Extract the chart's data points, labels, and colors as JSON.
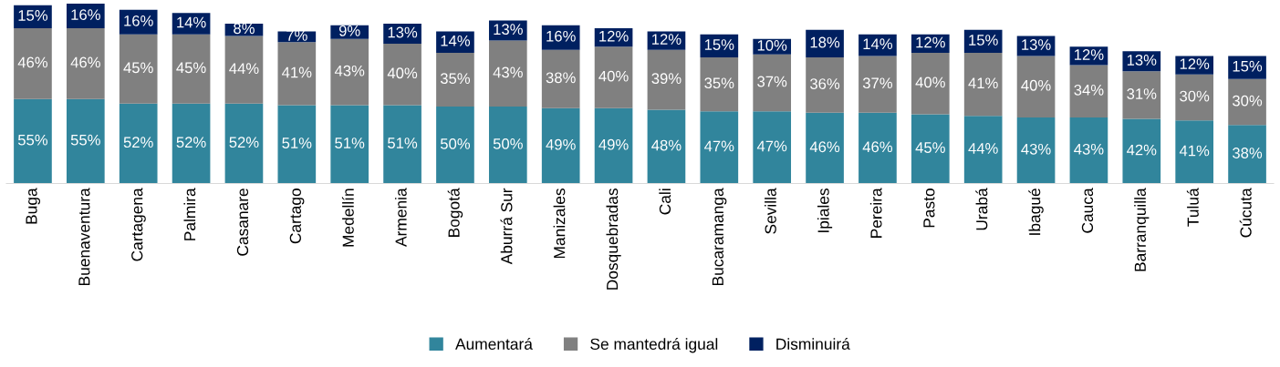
{
  "chart_data": {
    "type": "bar",
    "stacked": true,
    "legend": "bottom",
    "grid": false,
    "tick_labels": "x",
    "categories": [
      "Buga",
      "Buenaventura",
      "Cartagena",
      "Palmira",
      "Casanare",
      "Cartago",
      "Medellín",
      "Armenia",
      "Bogotá",
      "Aburrá Sur",
      "Manizales",
      "Dosquebradas",
      "Cali",
      "Bucaramanga",
      "Sevilla",
      "Ipiales",
      "Pereira",
      "Pasto",
      "Urabá",
      "Ibagué",
      "Cauca",
      "Barranquilla",
      "Tuluá",
      "Cúcuta"
    ],
    "series": [
      {
        "name": "Aumentará",
        "color": "#31859c",
        "values": [
          55,
          55,
          52,
          52,
          52,
          51,
          51,
          51,
          50,
          50,
          49,
          49,
          48,
          47,
          47,
          46,
          46,
          45,
          44,
          43,
          43,
          42,
          41,
          38
        ],
        "value_labels": [
          "55%",
          "55%",
          "52%",
          "52%",
          "52%",
          "51%",
          "51%",
          "51%",
          "50%",
          "50%",
          "49%",
          "49%",
          "48%",
          "47%",
          "47%",
          "46%",
          "46%",
          "45%",
          "44%",
          "43%",
          "43%",
          "42%",
          "41%",
          "38%"
        ]
      },
      {
        "name": "Se mantedrá igual",
        "color": "#808080",
        "values": [
          46,
          46,
          45,
          45,
          44,
          41,
          43,
          40,
          35,
          43,
          38,
          40,
          39,
          35,
          37,
          36,
          37,
          40,
          41,
          40,
          34,
          31,
          30,
          30
        ],
        "value_labels": [
          "46%",
          "46%",
          "45%",
          "45%",
          "44%",
          "41%",
          "43%",
          "40%",
          "35%",
          "43%",
          "38%",
          "40%",
          "39%",
          "35%",
          "37%",
          "36%",
          "37%",
          "40%",
          "41%",
          "40%",
          "34%",
          "31%",
          "30%",
          "30%"
        ]
      },
      {
        "name": "Disminuirá",
        "color": "#002060",
        "values": [
          15,
          16,
          16,
          14,
          8,
          7,
          9,
          13,
          14,
          13,
          16,
          12,
          12,
          15,
          10,
          18,
          14,
          12,
          15,
          13,
          12,
          13,
          12,
          15
        ],
        "value_labels": [
          "15%",
          "16%",
          "16%",
          "14%",
          "8%",
          "7%",
          "9%",
          "13%",
          "14%",
          "13%",
          "16%",
          "12%",
          "12%",
          "15%",
          "10%",
          "18%",
          "14%",
          "12%",
          "15%",
          "13%",
          "12%",
          "13%",
          "12%",
          "15%"
        ]
      }
    ]
  }
}
